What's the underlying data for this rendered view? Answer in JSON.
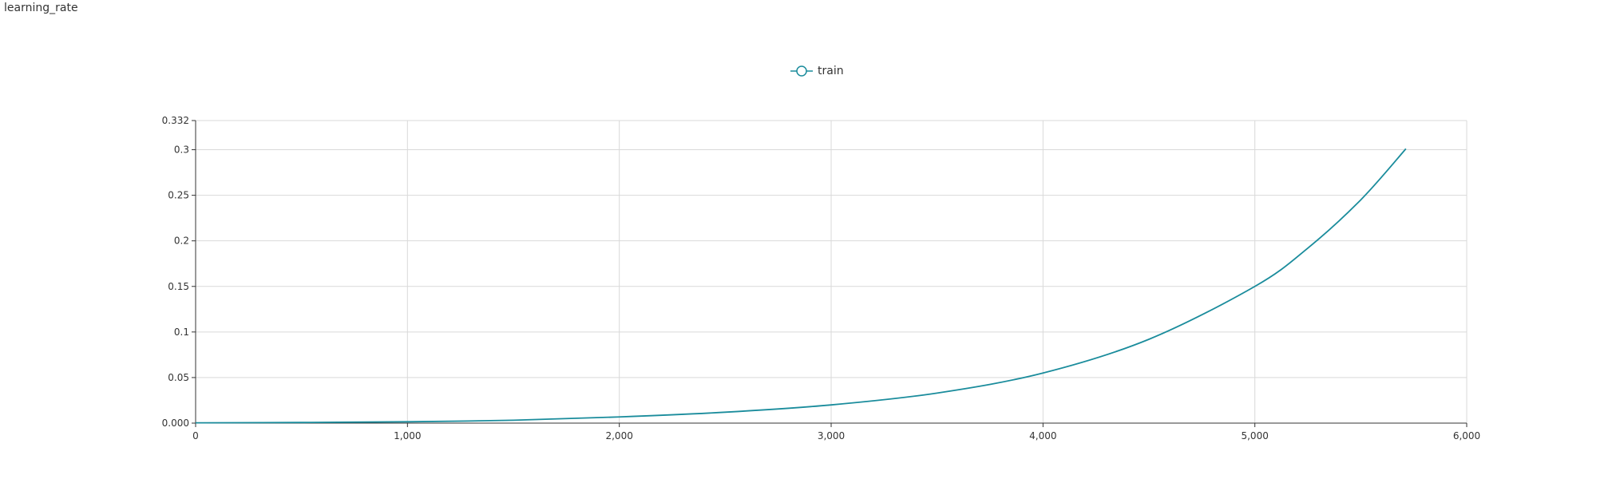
{
  "chart_data": {
    "type": "line",
    "title": "learning_rate",
    "legend_position": "top-center",
    "grid": true,
    "xlim": [
      0,
      6000
    ],
    "ylim": [
      0,
      0.332
    ],
    "x_ticks": [
      0,
      1000,
      2000,
      3000,
      4000,
      5000,
      6000
    ],
    "x_tick_labels": [
      "0",
      "1,000",
      "2,000",
      "3,000",
      "4,000",
      "5,000",
      "6,000"
    ],
    "y_ticks": [
      0,
      0.05,
      0.1,
      0.15,
      0.2,
      0.25,
      0.3,
      0.332
    ],
    "y_tick_labels": [
      "0.000",
      "0.05",
      "0.1",
      "0.15",
      "0.2",
      "0.25",
      "0.3",
      "0.332"
    ],
    "series": [
      {
        "name": "train",
        "color": "#1a8c9c",
        "x": [
          0,
          500,
          1000,
          1500,
          2000,
          2500,
          3000,
          3500,
          4000,
          4500,
          5000,
          5250,
          5500,
          5713
        ],
        "y": [
          0.0003,
          0.0007,
          0.0015,
          0.0032,
          0.0068,
          0.012,
          0.02,
          0.033,
          0.055,
          0.092,
          0.15,
          0.192,
          0.245,
          0.301
        ]
      }
    ]
  }
}
